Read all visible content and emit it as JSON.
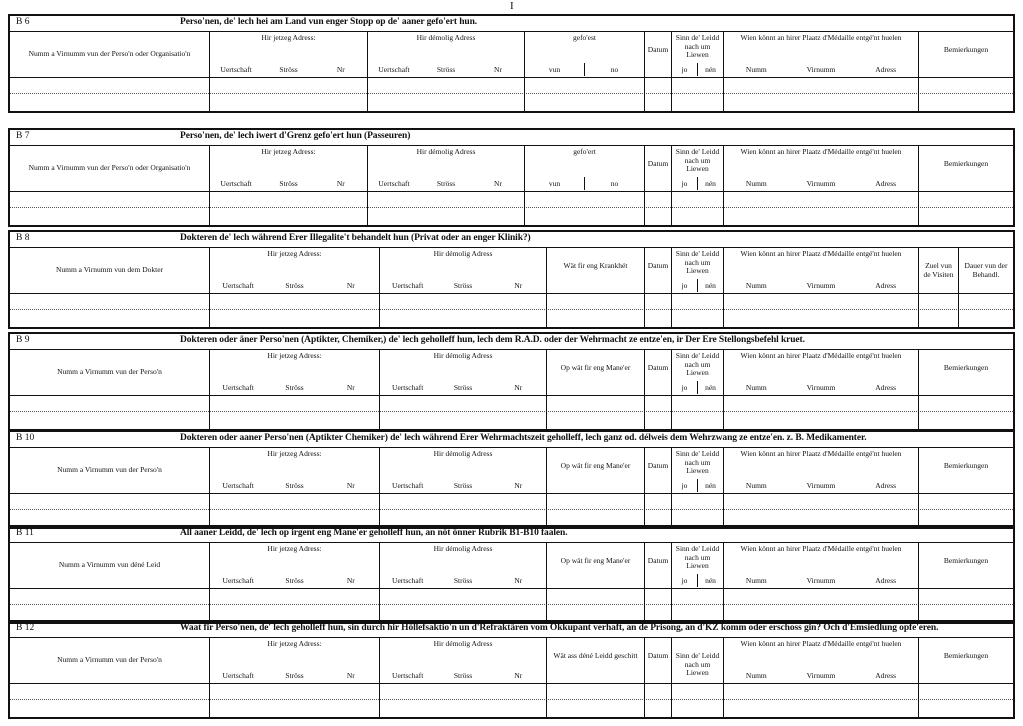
{
  "top_mark": "I",
  "sections": [
    {
      "code": "B 6",
      "title": "Perso'nen, de' lech hei am Land vun enger Stopp op de' aaner gefo'ert hun.",
      "columns": [
        {
          "label": "Numm a Virnumm vun der Perso'n oder Organisatio'n"
        },
        {
          "label": "Hir jetzeg Adress:",
          "subs": [
            "Uertschaft",
            "Ströss",
            "Nr"
          ]
        },
        {
          "label": "Hir démolig Adress",
          "subs": [
            "Uertschaft",
            "Ströss",
            "Nr"
          ]
        },
        {
          "label": "gefo'est",
          "subs": [
            "vun",
            "no"
          ]
        },
        {
          "label": "Datum"
        },
        {
          "label": "Sinn de' Leidd nach um Liewen",
          "subs": [
            "jo",
            "nén"
          ]
        },
        {
          "label": "Wien könnt an hirer Plaatz d'Médaille entgé'nt huelen",
          "subs": [
            "Numm",
            "Virnumm",
            "Adress"
          ]
        },
        {
          "label": "Bemierkungen"
        }
      ]
    },
    {
      "code": "B 7",
      "title": "Perso'nen, de' lech iwert d'Grenz gefo'ert hun (Passeuren)",
      "columns": [
        {
          "label": "Numm a Virnumm vun der Perso'n oder Organisatio'n"
        },
        {
          "label": "Hir jetzeg Adress:",
          "subs": [
            "Uertschaft",
            "Ströss",
            "Nr"
          ]
        },
        {
          "label": "Hir démolig Adress",
          "subs": [
            "Uertschaft",
            "Ströss",
            "Nr"
          ]
        },
        {
          "label": "gefo'ert",
          "subs": [
            "vun",
            "no"
          ]
        },
        {
          "label": "Datum"
        },
        {
          "label": "Sinn de' Leidd nach um Liewen",
          "subs": [
            "jo",
            "nén"
          ]
        },
        {
          "label": "Wien könnt an hirer Plaatz d'Médaille entgé'nt huelen",
          "subs": [
            "Numm",
            "Virnumm",
            "Adress"
          ]
        },
        {
          "label": "Bemierkungen"
        }
      ]
    },
    {
      "code": "B 8",
      "title": "Dokteren de' lech während Erer Illegalite't behandelt hun (Privat oder an enger Klinik?)",
      "columns": [
        {
          "label": "Numm a Virnumm vun dem Dokter"
        },
        {
          "label": "Hir jetzeg Adress:",
          "subs": [
            "Uertschaft",
            "Ströss",
            "Nr"
          ]
        },
        {
          "label": "Hir démolig Adress",
          "subs": [
            "Uertschaft",
            "Ströss",
            "Nr"
          ]
        },
        {
          "label": "Wät fir eng Krankhét"
        },
        {
          "label": "Datum"
        },
        {
          "label": "Sinn de' Leidd nach um Liewen",
          "subs": [
            "jo",
            "nén"
          ]
        },
        {
          "label": "Wien könnt an hirer Plaatz d'Médaille entgé'nt huelen",
          "subs": [
            "Numm",
            "Virnumm",
            "Adress"
          ]
        },
        {
          "label": "Zuel vun de Visiten"
        },
        {
          "label": "Dauer vun der Behandl."
        }
      ]
    },
    {
      "code": "B 9",
      "title": "Dokteren oder äner Perso'nen (Aptikter, Chemiker,) de' lech geholleff hun, lech dem R.A.D. oder der Wehrmacht ze entze'en, ir Der Ere Stellongsbefehl kruet.",
      "columns": [
        {
          "label": "Numm a Virnumm vun der Perso'n"
        },
        {
          "label": "Hir jetzeg Adress:",
          "subs": [
            "Uertschaft",
            "Ströss",
            "Nr"
          ]
        },
        {
          "label": "Hir démolig Adress",
          "subs": [
            "Uertschaft",
            "Ströss",
            "Nr"
          ]
        },
        {
          "label": "Op wät fir eng Mane'er"
        },
        {
          "label": "Datum"
        },
        {
          "label": "Sinn de' Leidd nach um Liewen",
          "subs": [
            "jo",
            "nén"
          ]
        },
        {
          "label": "Wien könnt an hirer Plaatz d'Médaille entgé'nt huelen",
          "subs": [
            "Numm",
            "Virnumm",
            "Adress"
          ]
        },
        {
          "label": "Bemierkungen"
        }
      ]
    },
    {
      "code": "B 10",
      "title": "Dokteren oder aaner Perso'nen (Aptikter Chemiker) de' lech während Erer Wehrmachtszeit geholleff, lech ganz od. délweis dem Wehrzwang ze entze'en. z. B. Medikamenter.",
      "columns": [
        {
          "label": "Numm a Virnumm vun der Perso'n"
        },
        {
          "label": "Hir jetzeg Adress:",
          "subs": [
            "Uertschaft",
            "Ströss",
            "Nr"
          ]
        },
        {
          "label": "Hir démolig Adress",
          "subs": [
            "Uertschaft",
            "Ströss",
            "Nr"
          ]
        },
        {
          "label": "Op wät fir eng Mane'er"
        },
        {
          "label": "Datum"
        },
        {
          "label": "Sinn de' Leidd nach um Liewen",
          "subs": [
            "jo",
            "nén"
          ]
        },
        {
          "label": "Wien könnt an hirer Plaatz d'Médaille entgé'nt huelen",
          "subs": [
            "Numm",
            "Virnumm",
            "Adress"
          ]
        },
        {
          "label": "Bemierkungen"
        }
      ]
    },
    {
      "code": "B 11",
      "title": "All aaner Leidd, de' lech op irgent eng Mane'er geholleff hun, an nöt önner Rubrik B1-B10 faalen.",
      "columns": [
        {
          "label": "Numm a Virnumm vun déné Leid"
        },
        {
          "label": "Hir jetzeg Adress:",
          "subs": [
            "Uertschaft",
            "Ströss",
            "Nr"
          ]
        },
        {
          "label": "Hir démolig Adress",
          "subs": [
            "Uertschaft",
            "Ströss",
            "Nr"
          ]
        },
        {
          "label": "Op wät fir eng Mane'er"
        },
        {
          "label": "Datum"
        },
        {
          "label": "Sinn de' Leidd nach um Liewen",
          "subs": [
            "jo",
            "nén"
          ]
        },
        {
          "label": "Wien könnt an hirer Plaatz d'Médaille entgé'nt huelen",
          "subs": [
            "Numm",
            "Virnumm",
            "Adress"
          ]
        },
        {
          "label": "Bemierkungen"
        }
      ]
    },
    {
      "code": "B 12",
      "title": "Waat fir Perso'nen, de' lech geholleff hun, sin durch hir Höllefsaktio'n un d'Refraktären vom Okkupant verhaft, an de Prisong, an d'KZ komm oder erschoss gin? Och d'Emsiedlung opfe'eren.",
      "columns": [
        {
          "label": "Numm a Virnumm vun der Perso'n"
        },
        {
          "label": "Hir jetzeg Adress:",
          "subs": [
            "Uertschaft",
            "Ströss",
            "Nr"
          ]
        },
        {
          "label": "Hir démolig Adress",
          "subs": [
            "Uertschaft",
            "Ströss",
            "Nr"
          ]
        },
        {
          "label": "Wät ass déné Leidd geschitt"
        },
        {
          "label": "Datum"
        },
        {
          "label": "Sinn de' Leidd nach um Liewen"
        },
        {
          "label": "Wien könnt an hirer Plaatz d'Médaille entgé'nt huelen",
          "subs": [
            "Numm",
            "Virnumm",
            "Adress"
          ]
        },
        {
          "label": "Bemierkungen"
        }
      ]
    }
  ]
}
